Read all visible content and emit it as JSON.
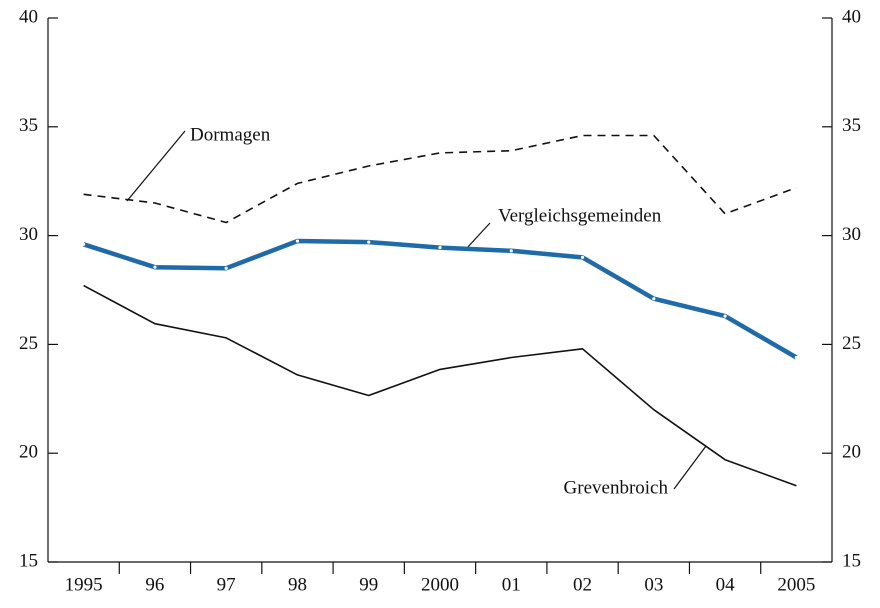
{
  "chart_data": {
    "type": "line",
    "categories": [
      "1995",
      "96",
      "97",
      "98",
      "99",
      "2000",
      "01",
      "02",
      "03",
      "04",
      "2005"
    ],
    "series": [
      {
        "name": "Dormagen",
        "color": "#111111",
        "dashed": true,
        "linewidth": 1.6,
        "markers": false,
        "values": [
          31.9,
          31.5,
          30.6,
          32.4,
          33.2,
          33.8,
          33.9,
          34.6,
          34.6,
          31.0,
          32.2
        ]
      },
      {
        "name": "Vergleichsgemeinden",
        "color": "#1f6aa8",
        "dashed": false,
        "linewidth": 4.5,
        "markers": true,
        "values": [
          29.6,
          28.55,
          28.5,
          29.75,
          29.7,
          29.45,
          29.3,
          29.0,
          27.1,
          26.3,
          24.4
        ]
      },
      {
        "name": "Grevenbroich",
        "color": "#111111",
        "dashed": false,
        "linewidth": 1.6,
        "markers": false,
        "values": [
          27.7,
          25.95,
          25.3,
          23.6,
          22.65,
          23.85,
          24.4,
          24.8,
          22.0,
          19.7,
          18.5
        ]
      }
    ],
    "ylim": [
      15,
      40
    ],
    "yticks": [
      15,
      20,
      25,
      30,
      35,
      40
    ],
    "right_axis_labels": true
  }
}
